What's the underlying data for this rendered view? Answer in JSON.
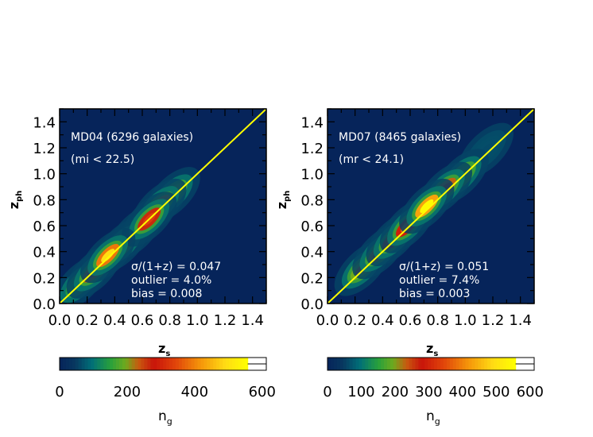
{
  "chart_data": [
    {
      "type": "heatmap",
      "xlabel": "z",
      "xlabel_sub": "s",
      "ylabel": "z",
      "ylabel_sub": "ph",
      "xlim": [
        0.0,
        1.5
      ],
      "ylim": [
        0.0,
        1.5
      ],
      "x_ticks": [
        "0.0",
        "0.2",
        "0.4",
        "0.6",
        "0.8",
        "1.0",
        "1.2",
        "1.4"
      ],
      "y_ticks": [
        "0.0",
        "0.2",
        "0.4",
        "0.6",
        "0.8",
        "1.0",
        "1.2",
        "1.4"
      ],
      "reference_line": {
        "from": [
          0.0,
          0.0
        ],
        "to": [
          1.5,
          1.5
        ],
        "color": "#ffff00"
      },
      "annotations": [
        "MD04 (6296 galaxies)",
        "(mi < 22.5)",
        "σ/(1+z) =  0.047",
        "outlier =    4.0%",
        "bias = 0.008"
      ],
      "density_peaks": [
        {
          "x": 0.35,
          "y": 0.37,
          "level": 560
        },
        {
          "x": 0.25,
          "y": 0.25,
          "level": 330
        },
        {
          "x": 0.45,
          "y": 0.45,
          "level": 360
        },
        {
          "x": 0.55,
          "y": 0.55,
          "level": 340
        },
        {
          "x": 0.65,
          "y": 0.65,
          "level": 380
        },
        {
          "x": 0.72,
          "y": 0.75,
          "level": 320
        },
        {
          "x": 0.82,
          "y": 0.84,
          "level": 230
        },
        {
          "x": 0.15,
          "y": 0.16,
          "level": 160
        }
      ],
      "colorbar": {
        "label": "n",
        "label_sub": "g",
        "range": [
          0,
          600
        ],
        "ticks": [
          "0",
          "200",
          "400",
          "600"
        ]
      }
    },
    {
      "type": "heatmap",
      "xlabel": "z",
      "xlabel_sub": "s",
      "ylabel": "z",
      "ylabel_sub": "ph",
      "xlim": [
        0.0,
        1.5
      ],
      "ylim": [
        0.0,
        1.5
      ],
      "x_ticks": [
        "0.0",
        "0.2",
        "0.4",
        "0.6",
        "0.8",
        "1.0",
        "1.2",
        "1.4"
      ],
      "y_ticks": [
        "0.0",
        "0.2",
        "0.4",
        "0.6",
        "0.8",
        "1.0",
        "1.2",
        "1.4"
      ],
      "reference_line": {
        "from": [
          0.0,
          0.0
        ],
        "to": [
          1.5,
          1.5
        ],
        "color": "#ffff00"
      },
      "annotations": [
        "MD07 (8465 galaxies)",
        "(mr < 24.1)",
        "σ/(1+z) =  0.051",
        "outlier =    7.4%",
        "bias = 0.003"
      ],
      "density_peaks": [
        {
          "x": 0.25,
          "y": 0.27,
          "level": 280
        },
        {
          "x": 0.38,
          "y": 0.4,
          "level": 330
        },
        {
          "x": 0.48,
          "y": 0.5,
          "level": 380
        },
        {
          "x": 0.58,
          "y": 0.6,
          "level": 420
        },
        {
          "x": 0.72,
          "y": 0.75,
          "level": 620
        },
        {
          "x": 0.85,
          "y": 0.88,
          "level": 330
        },
        {
          "x": 0.97,
          "y": 0.98,
          "level": 180
        },
        {
          "x": 1.15,
          "y": 1.18,
          "level": 70
        }
      ],
      "colorbar": {
        "label": "n",
        "label_sub": "g",
        "range": [
          0,
          600
        ],
        "ticks": [
          "0",
          "100",
          "200",
          "300",
          "400",
          "500",
          "600"
        ]
      }
    }
  ],
  "colors": {
    "background": "#06245a",
    "reference_line": "#ffff00",
    "frame": "#000000"
  }
}
